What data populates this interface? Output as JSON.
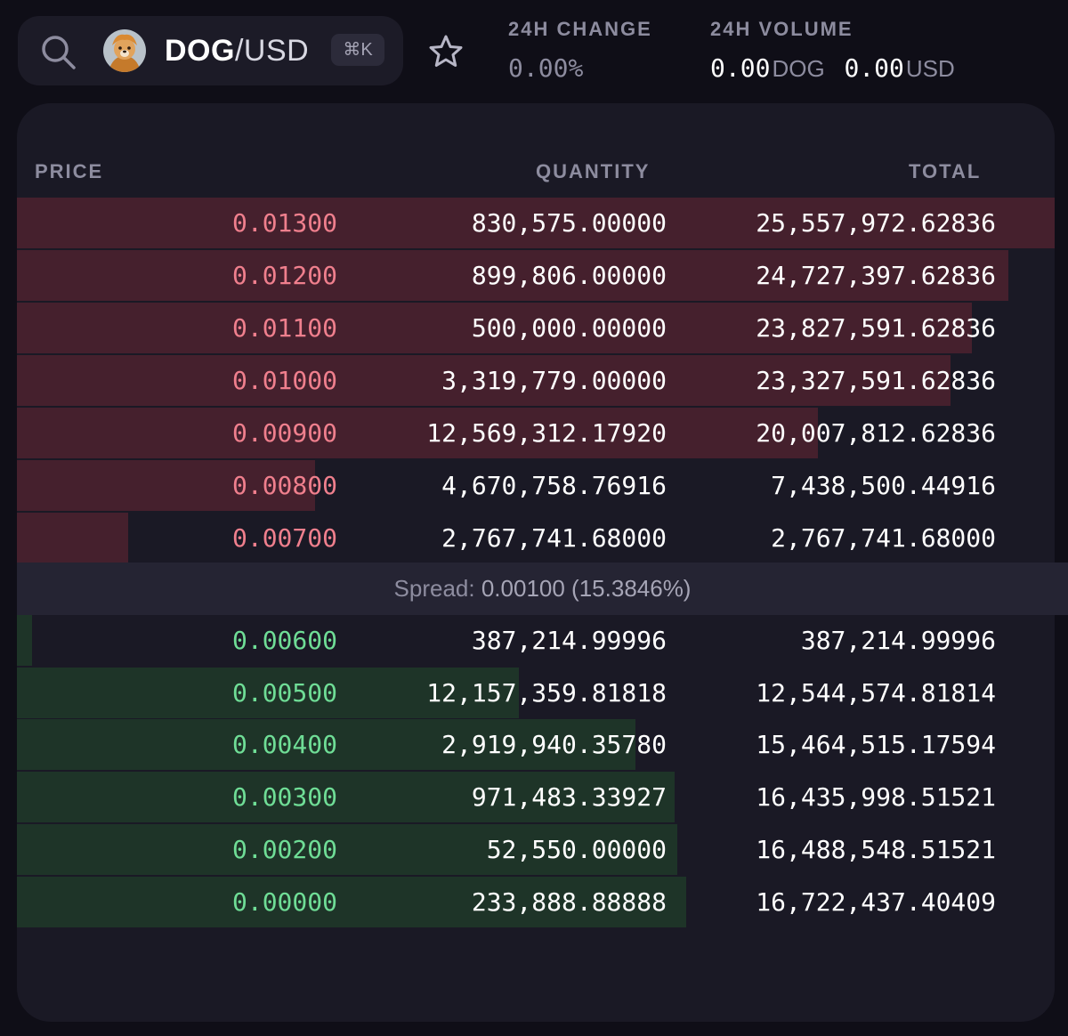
{
  "pair": {
    "base": "DOG",
    "sep": "/",
    "quote": "USD",
    "shortcut": "⌘K"
  },
  "icons": {
    "search": "search-icon",
    "favorite": "star-icon",
    "avatar": "dog-avatar"
  },
  "stats": {
    "change": {
      "label": "24H CHANGE",
      "value": "0.00",
      "unit": "%"
    },
    "volume": {
      "label": "24H VOLUME",
      "base_value": "0.00",
      "base_unit": "DOG",
      "quote_value": "0.00",
      "quote_unit": "USD"
    }
  },
  "orderbook": {
    "headers": {
      "price": "PRICE",
      "quantity": "QUANTITY",
      "total": "TOTAL"
    },
    "asks": [
      {
        "price": "0.01300",
        "quantity": "830,575.00000",
        "total": "25,557,972.62836",
        "depth": 1.0
      },
      {
        "price": "0.01200",
        "quantity": "899,806.00000",
        "total": "24,727,397.62836",
        "depth": 0.955
      },
      {
        "price": "0.01100",
        "quantity": "500,000.00000",
        "total": "23,827,591.62836",
        "depth": 0.92
      },
      {
        "price": "0.01000",
        "quantity": "3,319,779.00000",
        "total": "23,327,591.62836",
        "depth": 0.9
      },
      {
        "price": "0.00900",
        "quantity": "12,569,312.17920",
        "total": "20,007,812.62836",
        "depth": 0.772
      },
      {
        "price": "0.00800",
        "quantity": "4,670,758.76916",
        "total": "7,438,500.44916",
        "depth": 0.287
      },
      {
        "price": "0.00700",
        "quantity": "2,767,741.68000",
        "total": "2,767,741.68000",
        "depth": 0.107
      }
    ],
    "spread": {
      "label": "Spread:",
      "value": "0.00100 (15.3846%)"
    },
    "bids": [
      {
        "price": "0.00600",
        "quantity": "387,214.99996",
        "total": "387,214.99996",
        "depth": 0.015
      },
      {
        "price": "0.00500",
        "quantity": "12,157,359.81818",
        "total": "12,544,574.81814",
        "depth": 0.484
      },
      {
        "price": "0.00400",
        "quantity": "2,919,940.35780",
        "total": "15,464,515.17594",
        "depth": 0.596
      },
      {
        "price": "0.00300",
        "quantity": "971,483.33927",
        "total": "16,435,998.51521",
        "depth": 0.634
      },
      {
        "price": "0.00200",
        "quantity": "52,550.00000",
        "total": "16,488,548.51521",
        "depth": 0.636
      },
      {
        "price": "0.00000",
        "quantity": "233,888.88888",
        "total": "16,722,437.40409",
        "depth": 0.645
      }
    ]
  },
  "colors": {
    "ask": "#ef7f8d",
    "bid": "#6fdd96",
    "ask_bar": "#45202d",
    "bid_bar": "#1e3428"
  }
}
